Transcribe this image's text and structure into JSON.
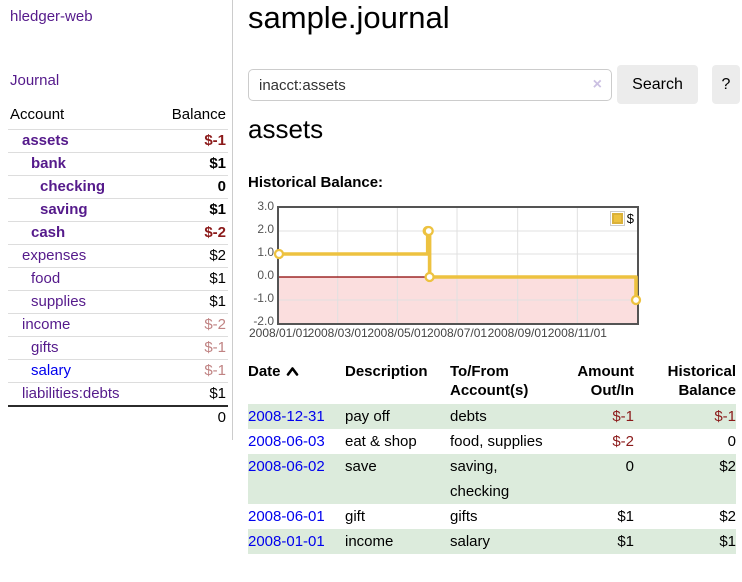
{
  "sidebar": {
    "brand": "hledger-web",
    "nav_journal": "Journal",
    "accounts": {
      "headers": [
        "Account",
        "Balance"
      ],
      "rows": [
        {
          "name": "assets",
          "balance": "$-1",
          "depth": 1
        },
        {
          "name": "bank",
          "balance": "$1",
          "depth": 2
        },
        {
          "name": "checking",
          "balance": "0",
          "depth": 3
        },
        {
          "name": "saving",
          "balance": "$1",
          "depth": 3
        },
        {
          "name": "cash",
          "balance": "$-2",
          "depth": 2
        },
        {
          "name": "expenses",
          "balance": "$2",
          "depth": 1
        },
        {
          "name": "food",
          "balance": "$1",
          "depth": 2
        },
        {
          "name": "supplies",
          "balance": "$1",
          "depth": 2
        },
        {
          "name": "income",
          "balance": "$-2",
          "depth": 1
        },
        {
          "name": "gifts",
          "balance": "$-1",
          "depth": 2
        },
        {
          "name": "salary",
          "balance": "$-1",
          "depth": 2
        },
        {
          "name": "liabilities:debts",
          "balance": "$1",
          "depth": 1
        }
      ],
      "total": "0"
    }
  },
  "main": {
    "title": "sample.journal",
    "search": {
      "value": "inacct:assets",
      "clear_label": "×",
      "search_button": "Search",
      "help_button": "?"
    },
    "section_title": "assets",
    "chart_heading": "Historical Balance:"
  },
  "chart_data": {
    "type": "line",
    "step": true,
    "title": "Historical Balance:",
    "series": [
      {
        "name": "$",
        "color": "#EDC240",
        "points": [
          [
            "2008-01-01",
            1
          ],
          [
            "2008-06-01",
            2
          ],
          [
            "2008-06-02",
            2
          ],
          [
            "2008-06-03",
            0
          ],
          [
            "2008-12-31",
            -1
          ]
        ]
      }
    ],
    "x_range": [
      "2008-01-01",
      "2009-01-01"
    ],
    "ylim": [
      -2,
      3
    ],
    "yticks": [
      "3.0",
      "2.0",
      "1.0",
      "0.0",
      "-1.0",
      "-2.0"
    ],
    "xticks": [
      "2008/01/01",
      "2008/03/01",
      "2008/05/01",
      "2008/07/01",
      "2008/09/01",
      "2008/11/01"
    ],
    "legend": {
      "label": "$",
      "position": "top-right"
    },
    "grid": true,
    "negative_region_color": "#fbdede",
    "zero_line_color": "#8b0000",
    "grid_color": "#e0e0e0"
  },
  "transactions": {
    "sort": {
      "column": "Date",
      "direction": "ascending"
    },
    "headers": [
      {
        "line1": "Date",
        "line2": ""
      },
      {
        "line1": "Description",
        "line2": ""
      },
      {
        "line1": "To/From",
        "line2": "Account(s)"
      },
      {
        "line1": "Amount",
        "line2": "Out/In"
      },
      {
        "line1": "Historical",
        "line2": "Balance"
      }
    ],
    "rows": [
      {
        "date": "2008-12-31",
        "description": "pay off",
        "accounts": "debts",
        "amount": "$-1",
        "balance": "$-1"
      },
      {
        "date": "2008-06-03",
        "description": "eat & shop",
        "accounts": "food, supplies",
        "amount": "$-2",
        "balance": "0"
      },
      {
        "date": "2008-06-02",
        "description": "save",
        "accounts": "saving, checking",
        "amount": "0",
        "balance": "$2"
      },
      {
        "date": "2008-06-01",
        "description": "gift",
        "accounts": "gifts",
        "amount": "$1",
        "balance": "$2"
      },
      {
        "date": "2008-01-01",
        "description": "income",
        "accounts": "salary",
        "amount": "$1",
        "balance": "$1"
      }
    ]
  },
  "colors": {
    "link_purple": "#551A8B",
    "link_blue": "#0000EE",
    "negative_strong": "#8b1a1a",
    "negative_soft": "#c08383",
    "row_stripe_green": "#dcebdc",
    "series_gold": "#EDC240"
  }
}
